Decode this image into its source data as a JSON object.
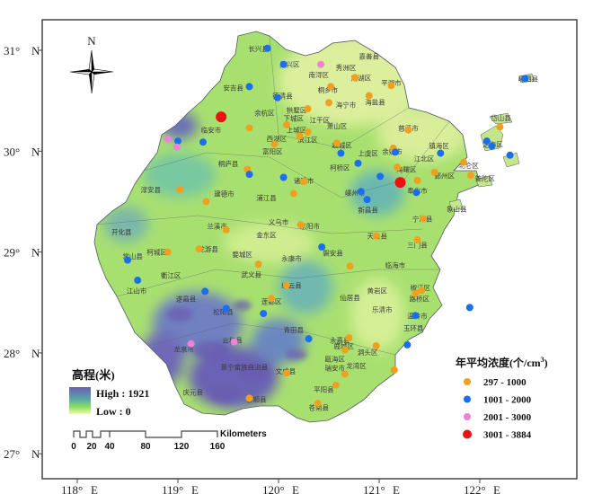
{
  "map": {
    "title_elevation_legend": "高程(米)",
    "elevation_high": "High : 1921",
    "elevation_low": "Low :  0",
    "north_label": "N",
    "scale_unit": "Kilometers",
    "scale_ticks": [
      "0",
      "20",
      "40",
      "80",
      "120",
      "160"
    ],
    "lon_ticks": [
      {
        "value": 118,
        "label": "118°",
        "hemi": "E"
      },
      {
        "value": 119,
        "label": "119°",
        "hemi": "E"
      },
      {
        "value": 120,
        "label": "120°",
        "hemi": "E"
      },
      {
        "value": 121,
        "label": "121°",
        "hemi": "E"
      },
      {
        "value": 122,
        "label": "122°",
        "hemi": "E"
      }
    ],
    "lat_ticks": [
      {
        "value": 31,
        "label": "31°",
        "hemi": "N"
      },
      {
        "value": 30,
        "label": "30°",
        "hemi": "N"
      },
      {
        "value": 29,
        "label": "29°",
        "hemi": "N"
      },
      {
        "value": 28,
        "label": "28°",
        "hemi": "N"
      },
      {
        "value": 27,
        "label": "27°",
        "hemi": "N"
      }
    ]
  },
  "legend": {
    "title": "年平均浓度(个/cm",
    "title_sup": "3",
    "title_end": ")",
    "classes": [
      {
        "key": "o",
        "label": "297 - 1000",
        "color": "#f0a020"
      },
      {
        "key": "b",
        "label": "1001 - 2000",
        "color": "#1a6ff0"
      },
      {
        "key": "p",
        "label": "2001 - 3000",
        "color": "#f080d8"
      },
      {
        "key": "r",
        "label": "3001 - 3884",
        "color": "#ee1111"
      }
    ]
  },
  "stations": [
    [
      119.89,
      31.02,
      "b"
    ],
    [
      120.05,
      30.86,
      "b"
    ],
    [
      120.42,
      30.86,
      "p"
    ],
    [
      119.71,
      30.64,
      "b"
    ],
    [
      119.99,
      30.53,
      "b"
    ],
    [
      120.52,
      30.64,
      "o"
    ],
    [
      120.5,
      30.48,
      "o"
    ],
    [
      120.76,
      30.73,
      "o"
    ],
    [
      120.9,
      30.55,
      "o"
    ],
    [
      121.12,
      30.65,
      "o"
    ],
    [
      119.43,
      30.34,
      "r"
    ],
    [
      119.71,
      30.23,
      "o"
    ],
    [
      119.96,
      30.07,
      "o"
    ],
    [
      120.08,
      30.26,
      "o"
    ],
    [
      120.29,
      30.42,
      "o"
    ],
    [
      120.29,
      30.19,
      "o"
    ],
    [
      120.21,
      30.15,
      "o"
    ],
    [
      120.58,
      30.08,
      "o"
    ],
    [
      119.25,
      30.09,
      "b"
    ],
    [
      119.0,
      30.1,
      "b"
    ],
    [
      118.9,
      30.12,
      "p"
    ],
    [
      118.99,
      30.04,
      "p"
    ],
    [
      119.69,
      29.82,
      "o"
    ],
    [
      119.71,
      29.77,
      "b"
    ],
    [
      120.05,
      29.74,
      "b"
    ],
    [
      120.25,
      29.7,
      "o"
    ],
    [
      120.15,
      29.58,
      "o"
    ],
    [
      119.02,
      29.62,
      "o"
    ],
    [
      119.28,
      29.5,
      "o"
    ],
    [
      119.48,
      29.22,
      "o"
    ],
    [
      120.22,
      29.27,
      "o"
    ],
    [
      120.43,
      29.05,
      "b"
    ],
    [
      118.9,
      29.0,
      "o"
    ],
    [
      119.21,
      29.03,
      "o"
    ],
    [
      118.5,
      28.92,
      "b"
    ],
    [
      118.6,
      28.72,
      "b"
    ],
    [
      120.62,
      29.98,
      "b"
    ],
    [
      121.29,
      30.21,
      "o"
    ],
    [
      120.79,
      29.88,
      "b"
    ],
    [
      121.14,
      30.03,
      "o"
    ],
    [
      121.16,
      29.99,
      "b"
    ],
    [
      121.18,
      29.84,
      "o"
    ],
    [
      121.01,
      29.75,
      "b"
    ],
    [
      121.21,
      29.69,
      "r"
    ],
    [
      121.38,
      29.71,
      "o"
    ],
    [
      121.55,
      29.79,
      "o"
    ],
    [
      121.61,
      29.98,
      "b"
    ],
    [
      121.37,
      29.59,
      "b"
    ],
    [
      120.82,
      29.6,
      "b"
    ],
    [
      120.88,
      29.52,
      "b"
    ],
    [
      121.84,
      29.89,
      "o"
    ],
    [
      121.91,
      29.76,
      "o"
    ],
    [
      122.2,
      30.24,
      "o"
    ],
    [
      122.07,
      30.1,
      "b"
    ],
    [
      122.12,
      30.05,
      "b"
    ],
    [
      122.3,
      29.96,
      "b"
    ],
    [
      121.44,
      29.33,
      "o"
    ],
    [
      121.38,
      29.12,
      "o"
    ],
    [
      120.97,
      29.16,
      "o"
    ],
    [
      119.8,
      28.88,
      "o"
    ],
    [
      119.27,
      28.61,
      "b"
    ],
    [
      119.48,
      28.44,
      "b"
    ],
    [
      120.08,
      28.67,
      "o"
    ],
    [
      119.93,
      28.54,
      "o"
    ],
    [
      119.85,
      28.39,
      "b"
    ],
    [
      119.13,
      28.09,
      "p"
    ],
    [
      119.56,
      28.11,
      "p"
    ],
    [
      120.3,
      28.14,
      "b"
    ],
    [
      120.08,
      27.8,
      "o"
    ],
    [
      119.71,
      27.55,
      "o"
    ],
    [
      120.57,
      27.68,
      "o"
    ],
    [
      120.39,
      27.5,
      "o"
    ],
    [
      120.71,
      28.86,
      "o"
    ],
    [
      121.42,
      28.62,
      "o"
    ],
    [
      121.36,
      28.59,
      "o"
    ],
    [
      121.36,
      28.37,
      "b"
    ],
    [
      121.28,
      28.08,
      "b"
    ],
    [
      120.97,
      28.07,
      "o"
    ],
    [
      120.7,
      28.15,
      "o"
    ],
    [
      120.66,
      28.03,
      "o"
    ],
    [
      121.15,
      27.83,
      "o"
    ],
    [
      120.66,
      27.79,
      "o"
    ],
    [
      121.9,
      28.45,
      "b"
    ],
    [
      122.45,
      30.72,
      "b"
    ]
  ],
  "places": [
    [
      "长兴县",
      119.8,
      31.02
    ],
    [
      "吴兴区",
      120.11,
      30.86
    ],
    [
      "南浔区",
      120.4,
      30.76
    ],
    [
      "嘉善县",
      120.9,
      30.94
    ],
    [
      "秀洲区",
      120.67,
      30.83
    ],
    [
      "南湖区",
      120.82,
      30.73
    ],
    [
      "平湖市",
      121.12,
      30.68
    ],
    [
      "桐乡市",
      120.49,
      30.61
    ],
    [
      "海宁市",
      120.67,
      30.46
    ],
    [
      "海盐县",
      120.96,
      30.49
    ],
    [
      "安吉县",
      119.55,
      30.63
    ],
    [
      "德清县",
      120.04,
      30.55
    ],
    [
      "余杭区",
      119.86,
      30.38
    ],
    [
      "拱墅区",
      120.18,
      30.41
    ],
    [
      "下城区",
      120.15,
      30.32
    ],
    [
      "江干区",
      120.41,
      30.31
    ],
    [
      "上城区",
      120.18,
      30.23
    ],
    [
      "萧山区",
      120.58,
      30.25
    ],
    [
      "滨江区",
      120.2,
      30.14
    ],
    [
      "西湖区",
      120.07,
      30.12
    ],
    [
      "临安市",
      119.33,
      30.21
    ],
    [
      "富阳区",
      119.94,
      30.0
    ],
    [
      "桐庐县",
      119.5,
      29.88
    ],
    [
      "淳安县",
      118.73,
      29.62
    ],
    [
      "建德市",
      119.46,
      29.58
    ],
    [
      "浦江县",
      119.88,
      29.54
    ],
    [
      "诸暨市",
      120.25,
      29.71
    ],
    [
      "越城区",
      120.63,
      30.06
    ],
    [
      "上虞区",
      120.89,
      29.98
    ],
    [
      "柯桥区",
      120.61,
      29.84
    ],
    [
      "余姚市",
      121.13,
      30.0
    ],
    [
      "慈溪市",
      121.29,
      30.23
    ],
    [
      "镇海区",
      121.54,
      30.01
    ],
    [
      "江北区",
      121.5,
      29.97
    ],
    [
      "海曙区",
      121.27,
      29.82
    ],
    [
      "鄞州区",
      121.65,
      29.76
    ],
    [
      "北仑区",
      121.89,
      29.86
    ],
    [
      "定海区",
      122.13,
      30.07
    ],
    [
      "岱山县",
      122.21,
      30.33
    ],
    [
      "嵊泗县",
      122.48,
      30.72
    ],
    [
      "普陀区",
      122.05,
      29.73
    ],
    [
      "奉化市",
      121.38,
      29.61
    ],
    [
      "嵊州市",
      120.76,
      29.59
    ],
    [
      "新昌县",
      120.89,
      29.42
    ],
    [
      "象山县",
      121.77,
      29.43
    ],
    [
      "宁海县",
      121.43,
      29.33
    ],
    [
      "天台县",
      120.98,
      29.16
    ],
    [
      "三门县",
      121.38,
      29.07
    ],
    [
      "兰溪市",
      119.39,
      29.26
    ],
    [
      "义乌市",
      120.0,
      29.3
    ],
    [
      "东阳市",
      120.31,
      29.26
    ],
    [
      "金东区",
      119.88,
      29.17
    ],
    [
      "婺城区",
      119.64,
      28.98
    ],
    [
      "永康市",
      120.13,
      28.94
    ],
    [
      "磐安县",
      120.54,
      28.99
    ],
    [
      "龙游县",
      119.3,
      29.03
    ],
    [
      "柯城区",
      118.79,
      29.0
    ],
    [
      "常山县",
      118.55,
      28.96
    ],
    [
      "衢江区",
      118.93,
      28.77
    ],
    [
      "江山市",
      118.59,
      28.62
    ],
    [
      "武义县",
      119.73,
      28.78
    ],
    [
      "缙云县",
      120.13,
      28.67
    ],
    [
      "仙居县",
      120.71,
      28.55
    ],
    [
      "临海市",
      121.16,
      28.87
    ],
    [
      "黄岩区",
      120.98,
      28.62
    ],
    [
      "椒江区",
      121.41,
      28.65
    ],
    [
      "路桥区",
      121.4,
      28.54
    ],
    [
      "温岭市",
      121.38,
      28.37
    ],
    [
      "玉环县",
      121.34,
      28.25
    ],
    [
      "乐清市",
      121.03,
      28.43
    ],
    [
      "遂昌县",
      119.08,
      28.54
    ],
    [
      "松阳县",
      119.45,
      28.41
    ],
    [
      "莲都区",
      119.93,
      28.51
    ],
    [
      "青田县",
      120.15,
      28.23
    ],
    [
      "云和县",
      119.54,
      28.13
    ],
    [
      "永嘉县",
      120.61,
      28.13
    ],
    [
      "龙泉市",
      119.06,
      28.04
    ],
    [
      "景宁畲族自治县",
      119.66,
      27.86
    ],
    [
      "鹿城区",
      120.65,
      28.07
    ],
    [
      "瓯海区",
      120.56,
      27.94
    ],
    [
      "洞头区",
      120.85,
      27.98
    ],
    [
      "龙湾区",
      120.79,
      27.9
    ],
    [
      "瑞安市",
      120.56,
      27.85
    ],
    [
      "文成县",
      120.07,
      27.82
    ],
    [
      "庆元县",
      119.15,
      27.61
    ],
    [
      "泰顺县",
      119.78,
      27.54
    ],
    [
      "平阳县",
      120.45,
      27.64
    ],
    [
      "苍南县",
      120.4,
      27.46
    ],
    [
      "开化县",
      118.44,
      29.2
    ]
  ]
}
